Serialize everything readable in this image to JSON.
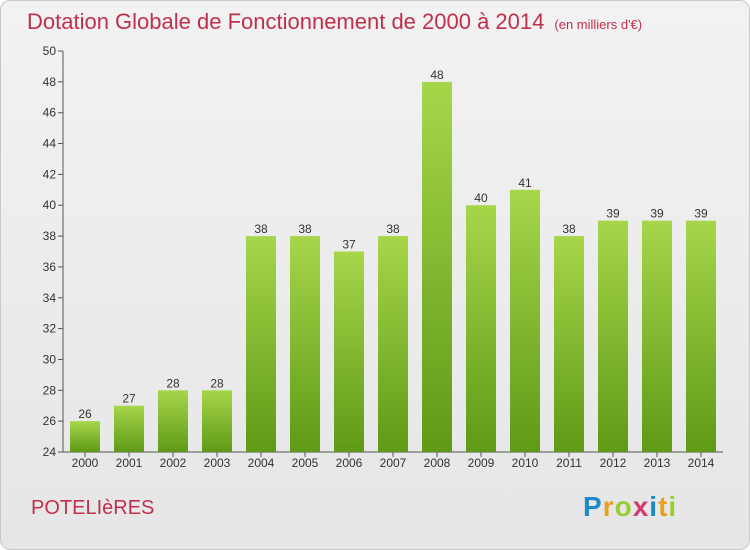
{
  "title": "Dotation Globale de Fonctionnement de 2000 à 2014",
  "unit": "(en milliers d'€)",
  "commune": "POTELIèRES",
  "logo": {
    "letters": [
      "P",
      "r",
      "o",
      "x",
      "i",
      "t",
      "i"
    ],
    "colors": [
      "#1e88c8",
      "#e8a020",
      "#9acd32",
      "#d43a70",
      "#1e88c8",
      "#e8a020",
      "#9acd32"
    ]
  },
  "colors": {
    "bar_light": "#a6d64a",
    "bar_dark": "#5f9a16",
    "title": "#c0304d"
  },
  "chart_data": {
    "type": "bar",
    "title": "Dotation Globale de Fonctionnement de 2000 à 2014",
    "subtitle": "(en milliers d'€)",
    "categories": [
      "2000",
      "2001",
      "2002",
      "2003",
      "2004",
      "2005",
      "2006",
      "2007",
      "2008",
      "2009",
      "2010",
      "2011",
      "2012",
      "2013",
      "2014"
    ],
    "values": [
      26,
      27,
      28,
      28,
      38,
      38,
      37,
      38,
      48,
      40,
      41,
      38,
      39,
      39,
      39
    ],
    "ylim": [
      24,
      50
    ],
    "yticks": [
      24,
      26,
      28,
      30,
      32,
      34,
      36,
      38,
      40,
      42,
      44,
      46,
      48,
      50
    ],
    "grid": false,
    "legend": "none"
  }
}
